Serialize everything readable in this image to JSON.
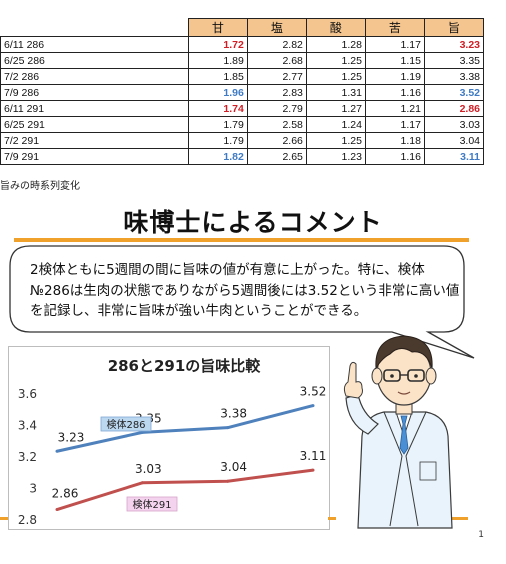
{
  "table": {
    "headers": [
      "",
      "甘",
      "塩",
      "酸",
      "苦",
      "旨"
    ],
    "rows": [
      {
        "label": "6/11 286",
        "values": [
          "1.72",
          "2.82",
          "1.28",
          "1.17",
          "3.23"
        ],
        "styles": [
          "red",
          "",
          "",
          "",
          "red"
        ]
      },
      {
        "label": "6/25 286",
        "values": [
          "1.89",
          "2.68",
          "1.25",
          "1.15",
          "3.35"
        ],
        "styles": [
          "",
          "",
          "",
          "",
          ""
        ]
      },
      {
        "label": "7/2 286",
        "values": [
          "1.85",
          "2.77",
          "1.25",
          "1.19",
          "3.38"
        ],
        "styles": [
          "",
          "",
          "",
          "",
          ""
        ]
      },
      {
        "label": "7/9 286",
        "values": [
          "1.96",
          "2.83",
          "1.31",
          "1.16",
          "3.52"
        ],
        "styles": [
          "blue",
          "",
          "",
          "",
          "blue"
        ]
      },
      {
        "label": "6/11 291",
        "values": [
          "1.74",
          "2.79",
          "1.27",
          "1.21",
          "2.86"
        ],
        "styles": [
          "red",
          "",
          "",
          "",
          "red"
        ]
      },
      {
        "label": "6/25 291",
        "values": [
          "1.79",
          "2.58",
          "1.24",
          "1.17",
          "3.03"
        ],
        "styles": [
          "",
          "",
          "",
          "",
          ""
        ]
      },
      {
        "label": "7/2 291",
        "values": [
          "1.79",
          "2.66",
          "1.25",
          "1.18",
          "3.04"
        ],
        "styles": [
          "",
          "",
          "",
          "",
          ""
        ]
      },
      {
        "label": "7/9 291",
        "values": [
          "1.82",
          "2.65",
          "1.23",
          "1.16",
          "3.11"
        ],
        "styles": [
          "blue",
          "",
          "",
          "",
          "blue"
        ]
      }
    ]
  },
  "caption": "旨みの時系列変化",
  "heading": "味博士によるコメント",
  "comment": "2検体ともに5週間の間に旨味の値が有意に上がった。特に、検体№286は生肉の状態でありながら5週間後には3.52という非常に高い値を記録し、非常に旨味が強い牛肉ということができる。",
  "page_number": "1",
  "colors": {
    "accent_orange": "#f0a12c",
    "series_blue": "#4f81bd",
    "series_red": "#c0504d",
    "highlight_red": "#d01e25",
    "highlight_blue": "#3f7bc4"
  },
  "illustration": "doctor-character-icon",
  "chart_data": {
    "type": "line",
    "title": "286と291の旨味比較",
    "ylim": [
      2.8,
      3.6
    ],
    "yticks": [
      "3.6",
      "3.4",
      "3.2",
      "3",
      "2.8"
    ],
    "ytick_values": [
      3.6,
      3.4,
      3.2,
      3.0,
      2.8
    ],
    "grid": false,
    "series": [
      {
        "name": "検体286",
        "values": [
          3.23,
          3.35,
          3.38,
          3.52
        ],
        "labels": [
          "3.23",
          "3.35",
          "3.38",
          "3.52"
        ]
      },
      {
        "name": "検体291",
        "values": [
          2.86,
          3.03,
          3.04,
          3.11
        ],
        "labels": [
          "2.86",
          "3.03",
          "3.04",
          "3.11"
        ]
      }
    ]
  }
}
